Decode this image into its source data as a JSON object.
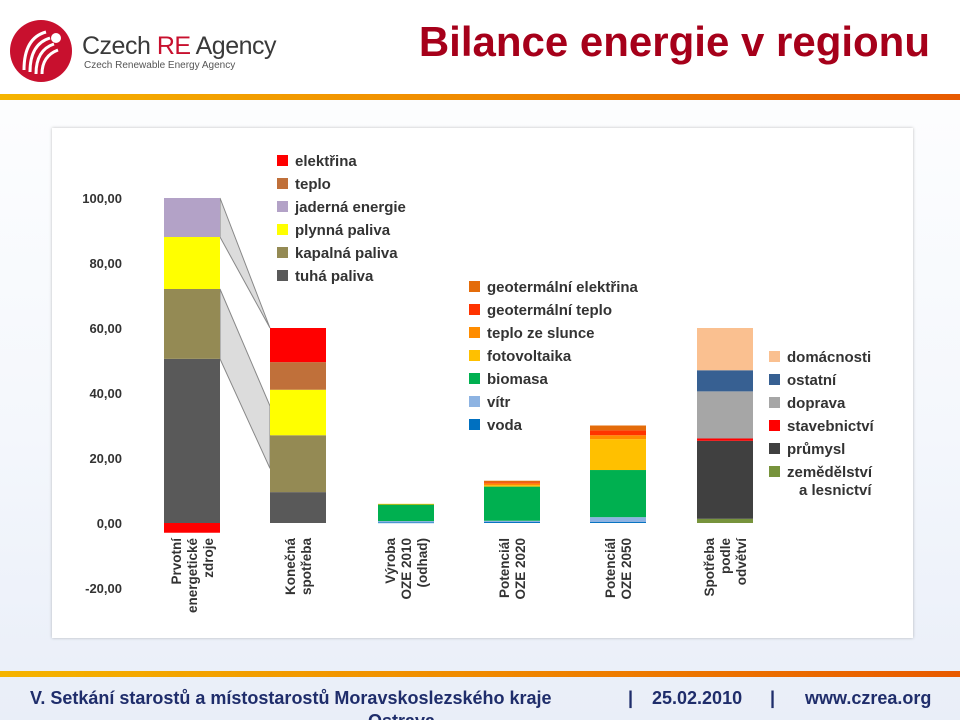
{
  "header": {
    "logo_text_pre": "Czech ",
    "logo_text_re": "RE",
    "logo_text_post": " Agency",
    "logo_subtitle": "Czech Renewable Energy Agency",
    "title": "Bilance energie v regionu"
  },
  "footer": {
    "text": "V. Setkání starostů a místostarostů Moravskoslezského kraje",
    "separator": "|",
    "date": "25.02.2010",
    "url": "www.czrea.org",
    "wrap": "Ostrava"
  },
  "colors": {
    "brand_red": "#c8102e",
    "title": "#a6001a",
    "footer_text": "#1f2d6b",
    "stripe": "#f08a00"
  },
  "chart_data": {
    "type": "bar",
    "stacked": true,
    "ylim": [
      -20,
      100
    ],
    "yticks": [
      "100,00",
      "80,00",
      "60,00",
      "40,00",
      "20,00",
      "0,00",
      "-20,00"
    ],
    "ytick_values": [
      100,
      80,
      60,
      40,
      20,
      0,
      -20
    ],
    "grid": false,
    "categories": [
      [
        "Prvotní",
        "energetické",
        "zdroje"
      ],
      [
        "Konečná",
        "spotřeba"
      ],
      [
        "Výroba",
        "OZE 2010",
        "(odhad)"
      ],
      [
        "Potenciál",
        "OZE 2020"
      ],
      [
        "Potenciál",
        "OZE 2050"
      ],
      [
        "Spotřeba",
        "podle",
        "odvětví"
      ]
    ],
    "series": [
      {
        "name": "tuhá paliva",
        "color": "#595959",
        "values": [
          50.5,
          9.5,
          0,
          0,
          0,
          0
        ]
      },
      {
        "name": "kapalná paliva",
        "color": "#948a54",
        "values": [
          21.5,
          17.5,
          0,
          0,
          0,
          0
        ]
      },
      {
        "name": "plynná paliva",
        "color": "#ffff00",
        "values": [
          16,
          14,
          0,
          0,
          0,
          0
        ]
      },
      {
        "name": "jaderná energie",
        "color": "#b3a2c7",
        "values": [
          12,
          0,
          0,
          0,
          0,
          0
        ]
      },
      {
        "name": "teplo",
        "color": "#c0703a",
        "values": [
          0,
          8.5,
          0,
          0,
          0,
          0
        ]
      },
      {
        "name": "elektřina",
        "color": "#ff0000",
        "values": [
          -3,
          10.5,
          0,
          0,
          0,
          0
        ]
      },
      {
        "name": "voda",
        "color": "#0070c0",
        "values": [
          0,
          0,
          0.2,
          0.3,
          0.3,
          0
        ]
      },
      {
        "name": "vítr",
        "color": "#8db3e2",
        "values": [
          0,
          0,
          0.4,
          0.4,
          1.5,
          0
        ]
      },
      {
        "name": "biomasa",
        "color": "#00b050",
        "values": [
          0,
          0,
          5.2,
          10.5,
          14.5,
          0
        ]
      },
      {
        "name": "fotovoltaika",
        "color": "#ffc000",
        "values": [
          0,
          0,
          0.1,
          0.4,
          9.5,
          0
        ]
      },
      {
        "name": "teplo ze slunce",
        "color": "#ff8c00",
        "values": [
          0,
          0,
          0,
          0.6,
          1.2,
          0
        ]
      },
      {
        "name": "geotermální teplo",
        "color": "#ff3300",
        "values": [
          0,
          0,
          0,
          0.3,
          1.5,
          0
        ]
      },
      {
        "name": "geotermální elektřina",
        "color": "#e46c0a",
        "values": [
          0,
          0,
          0,
          0.5,
          1.5,
          0
        ]
      },
      {
        "name": "zemědělství a lesnictví",
        "color": "#77933c",
        "values": [
          0,
          0,
          0,
          0,
          0,
          1.3
        ]
      },
      {
        "name": "průmysl",
        "color": "#404040",
        "values": [
          0,
          0,
          0,
          0,
          0,
          24
        ]
      },
      {
        "name": "stavebnictví",
        "color": "#ff0000",
        "values": [
          0,
          0,
          0,
          0,
          0,
          0.7
        ]
      },
      {
        "name": "doprava",
        "color": "#a6a6a6",
        "values": [
          0,
          0,
          0,
          0,
          0,
          14.5
        ]
      },
      {
        "name": "ostatní",
        "color": "#376092",
        "values": [
          0,
          0,
          0,
          0,
          0,
          6.5
        ]
      },
      {
        "name": "domácnosti",
        "color": "#fac090",
        "values": [
          0,
          0,
          0,
          0,
          0,
          13
        ]
      }
    ],
    "legends": [
      {
        "placement": "top-left",
        "items": [
          {
            "label": "elektřina",
            "color": "#ff0000"
          },
          {
            "label": "teplo",
            "color": "#c0703a"
          },
          {
            "label": "jaderná energie",
            "color": "#b3a2c7"
          },
          {
            "label": "plynná paliva",
            "color": "#ffff00"
          },
          {
            "label": "kapalná paliva",
            "color": "#948a54"
          },
          {
            "label": "tuhá paliva",
            "color": "#595959"
          }
        ]
      },
      {
        "placement": "center",
        "items": [
          {
            "label": "geotermální elektřina",
            "color": "#e46c0a"
          },
          {
            "label": "geotermální teplo",
            "color": "#ff3300"
          },
          {
            "label": "teplo ze slunce",
            "color": "#ff8c00"
          },
          {
            "label": "fotovoltaika",
            "color": "#ffc000"
          },
          {
            "label": "biomasa",
            "color": "#00b050"
          },
          {
            "label": "vítr",
            "color": "#8db3e2"
          },
          {
            "label": "voda",
            "color": "#0070c0"
          }
        ]
      },
      {
        "placement": "right",
        "items": [
          {
            "label": "domácnosti",
            "color": "#fac090"
          },
          {
            "label": "ostatní",
            "color": "#376092"
          },
          {
            "label": "doprava",
            "color": "#a6a6a6"
          },
          {
            "label": "stavebnictví",
            "color": "#ff0000"
          },
          {
            "label": "průmysl",
            "color": "#404040"
          },
          {
            "label": [
              "zemědělství",
              "a lesnictví"
            ],
            "color": "#77933c"
          }
        ]
      }
    ]
  }
}
